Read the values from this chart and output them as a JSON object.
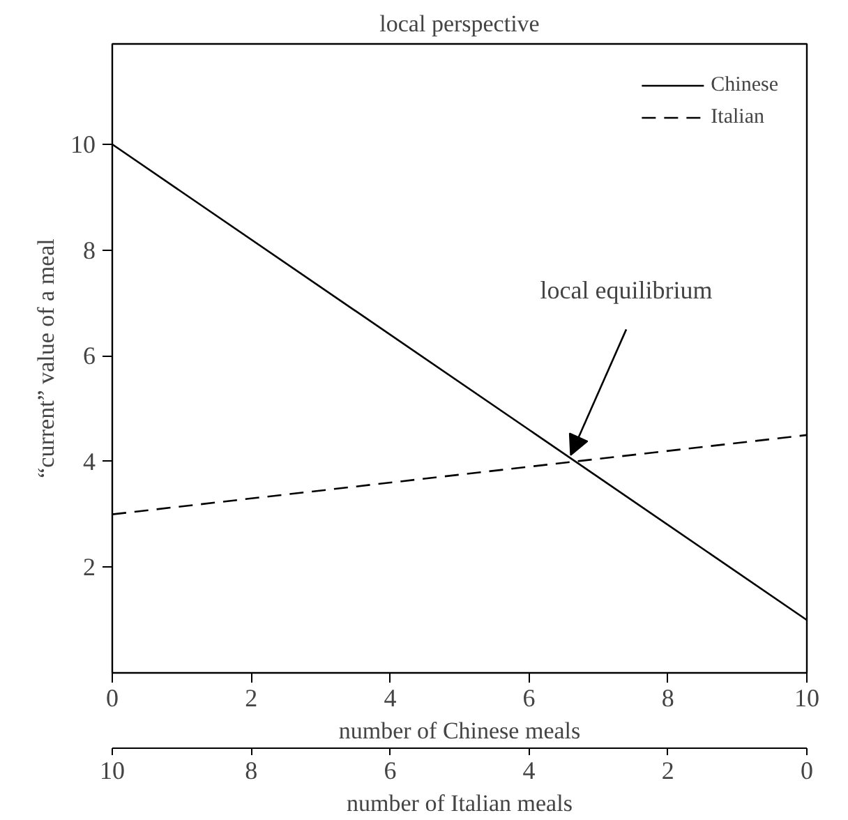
{
  "chart_data": {
    "type": "line",
    "title": "local perspective",
    "xlabel": "number of Chinese meals",
    "ylabel": "“current” value of a meal",
    "x2label": "number of Italian meals",
    "x": [
      0,
      10
    ],
    "series": [
      {
        "name": "Chinese",
        "color": "#000000",
        "values": [
          10,
          1
        ],
        "line_style": "solid"
      },
      {
        "name": "Italian",
        "color": "#000000",
        "values": [
          3,
          4.5
        ],
        "line_style": "dashed"
      }
    ],
    "xlim": [
      0,
      10
    ],
    "xticks": [
      0,
      2,
      4,
      6,
      8,
      10
    ],
    "x2lim": [
      10,
      0
    ],
    "x2ticks": [
      10,
      8,
      6,
      4,
      2,
      0
    ],
    "ylim": [
      0,
      11.9
    ],
    "yticks": [
      2,
      4,
      6,
      8,
      10
    ],
    "annotations": [
      {
        "text": "local equilibrium",
        "x": 6.6,
        "y": 4
      }
    ],
    "grid": false,
    "legend": "top right",
    "marker": "none"
  }
}
